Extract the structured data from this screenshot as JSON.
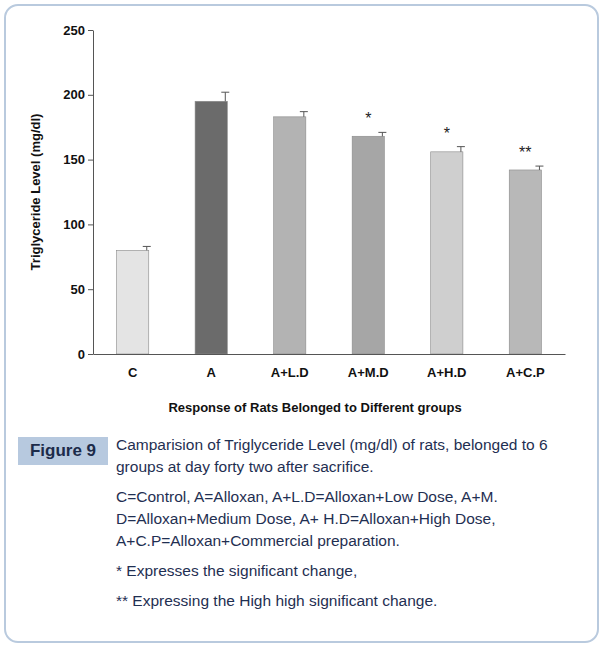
{
  "chart_data": {
    "type": "bar",
    "y_label": "Triglyceride Level (mg/dl)",
    "x_label": "Response of Rats Belonged to Different groups",
    "categories": [
      "C",
      "A",
      "A+L.D",
      "A+M.D",
      "A+H.D",
      "A+C.P"
    ],
    "values": [
      80,
      195,
      183,
      168,
      156,
      142
    ],
    "errors": [
      3,
      7,
      4,
      3,
      4,
      3
    ],
    "significance": [
      null,
      null,
      null,
      "*",
      "*",
      "**"
    ],
    "colors": [
      "#e4e4e4",
      "#6b6b6b",
      "#b3b3b3",
      "#a6a6a6",
      "#cfcfcf",
      "#b8b8b8"
    ],
    "ylim": [
      0,
      250
    ],
    "yticks": [
      0,
      50,
      100,
      150,
      200,
      250
    ],
    "grid": false,
    "caption": {
      "label": "Figure 9",
      "text": [
        "Camparision of Triglyceride Level (mg/dl) of rats, belonged to 6 groups at day forty two after sacrifice.",
        "C=Control, A=Alloxan, A+L.D=Alloxan+Low Dose, A+M. D=Alloxan+Medium Dose, A+ H.D=Alloxan+High Dose, A+C.P=Alloxan+Commercial preparation.",
        "* Expresses the significant change,",
        "** Expressing the High high significant change."
      ]
    }
  }
}
